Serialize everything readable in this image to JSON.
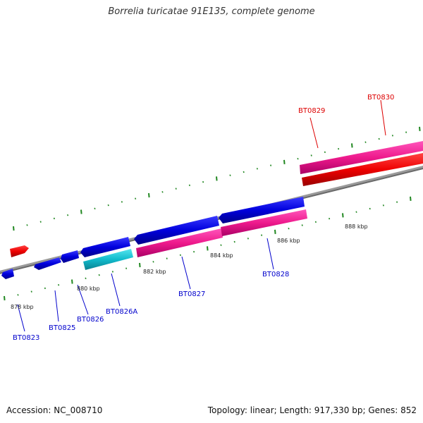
{
  "title": "Borrelia turicatae 91E135, complete genome",
  "accession": "Accession: NC_008710",
  "summary": "Topology: linear; Length: 917,330 bp; Genes: 852",
  "colors": {
    "forward_gene": "#0000dd",
    "forward_rna": "#dd1188",
    "reverse_gene": "#ee0000",
    "reverse_rna": "#ee2299",
    "pseudo": "#11bbcc",
    "axis": "#888888",
    "tick": "#228822",
    "label_forward": "#0000cc",
    "label_reverse": "#dd0000"
  },
  "genes": [
    {
      "id": "BT0823",
      "color": "#0000cc"
    },
    {
      "id": "BT0825",
      "color": "#0000cc"
    },
    {
      "id": "BT0826",
      "color": "#0000cc"
    },
    {
      "id": "BT0826A",
      "color": "#0000cc"
    },
    {
      "id": "BT0827",
      "color": "#0000cc"
    },
    {
      "id": "BT0828",
      "color": "#0000cc"
    },
    {
      "id": "BT0829",
      "color": "#dd0000"
    },
    {
      "id": "BT0830",
      "color": "#dd0000"
    }
  ],
  "scale_labels": [
    "878 kbp",
    "880 kbp",
    "882 kbp",
    "884 kbp",
    "886 kbp",
    "888 kbp"
  ]
}
